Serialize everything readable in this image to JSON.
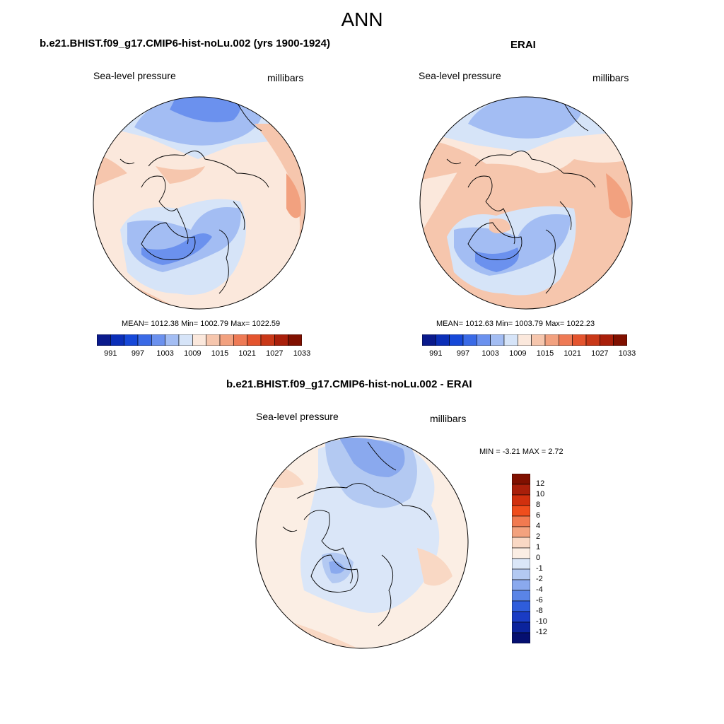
{
  "main_title": "ANN",
  "panels": [
    {
      "title": "b.e21.BHIST.f09_g17.CMIP6-hist-noLu.002 (yrs 1900-1924)",
      "left_label": "Sea-level pressure",
      "right_label": "millibars",
      "stats": "MEAN= 1012.38  Min= 1002.79  Max= 1022.59",
      "colorbar_labels": [
        "991",
        "997",
        "1003",
        "1009",
        "1015",
        "1021",
        "1027",
        "1033"
      ]
    },
    {
      "title": "ERAI",
      "left_label": "Sea-level pressure",
      "right_label": "millibars",
      "stats": "MEAN= 1012.63  Min= 1003.79  Max= 1022.23",
      "colorbar_labels": [
        "991",
        "997",
        "1003",
        "1009",
        "1015",
        "1021",
        "1027",
        "1033"
      ]
    },
    {
      "title": "b.e21.BHIST.f09_g17.CMIP6-hist-noLu.002 - ERAI",
      "left_label": "Sea-level pressure",
      "right_label": "millibars",
      "stats": "MIN =  -3.21 MAX =   2.72",
      "colorbar_labels": [
        "12",
        "10",
        "8",
        "6",
        "4",
        "2",
        "1",
        "0",
        "-1",
        "-2",
        "-4",
        "-6",
        "-8",
        "-10",
        "-12"
      ]
    }
  ],
  "colors": {
    "abs_scale": [
      "#0a1a8c",
      "#0b2fb8",
      "#1648d8",
      "#3a6ae6",
      "#6b91ee",
      "#a3bdf3",
      "#d6e4f8",
      "#fbe8dc",
      "#f6c6ad",
      "#f2a17f",
      "#ee7a55",
      "#e4542e",
      "#c93818",
      "#a91f0a",
      "#801000"
    ],
    "diff_scale": [
      "#801000",
      "#a91f0a",
      "#d1300e",
      "#ef4d1c",
      "#f17a50",
      "#f3a27e",
      "#f9d8c4",
      "#fbeee4",
      "#dae6f8",
      "#b3c9f2",
      "#8aa9ee",
      "#5a84e6",
      "#2f5ddb",
      "#1a3cc4",
      "#0b239c",
      "#050f70"
    ]
  }
}
